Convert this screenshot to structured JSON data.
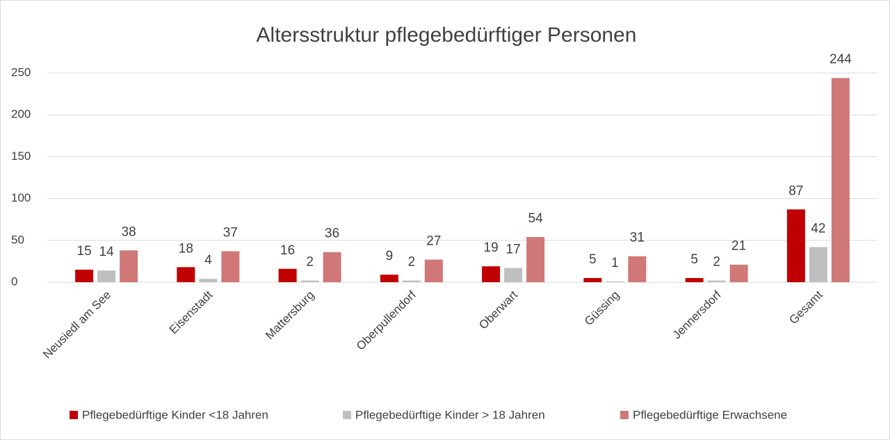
{
  "chart_data": {
    "type": "bar",
    "title": "Altersstruktur pflegebedürftiger Personen",
    "categories": [
      "Neusiedl am See",
      "Eisenstadt",
      "Mattersburg",
      "Oberpullendorf",
      "Oberwart",
      "Güssing",
      "Jennersdorf",
      "Gesamt"
    ],
    "series": [
      {
        "name": "Pflegebedürftige Kinder <18 Jahren",
        "color": "#c00000",
        "values": [
          15,
          18,
          16,
          9,
          19,
          5,
          5,
          87
        ]
      },
      {
        "name": "Pflegebedürftige Kinder > 18 Jahren",
        "color": "#bfbfbf",
        "values": [
          14,
          4,
          2,
          2,
          17,
          1,
          2,
          42
        ]
      },
      {
        "name": "Pflegebedürftige Erwachsene",
        "color": "#d07878",
        "values": [
          38,
          37,
          36,
          27,
          54,
          31,
          21,
          244
        ]
      }
    ],
    "ylim": [
      0,
      250
    ],
    "yticks": [
      0,
      50,
      100,
      150,
      200,
      250
    ],
    "grid": true,
    "legend": "bottom"
  }
}
